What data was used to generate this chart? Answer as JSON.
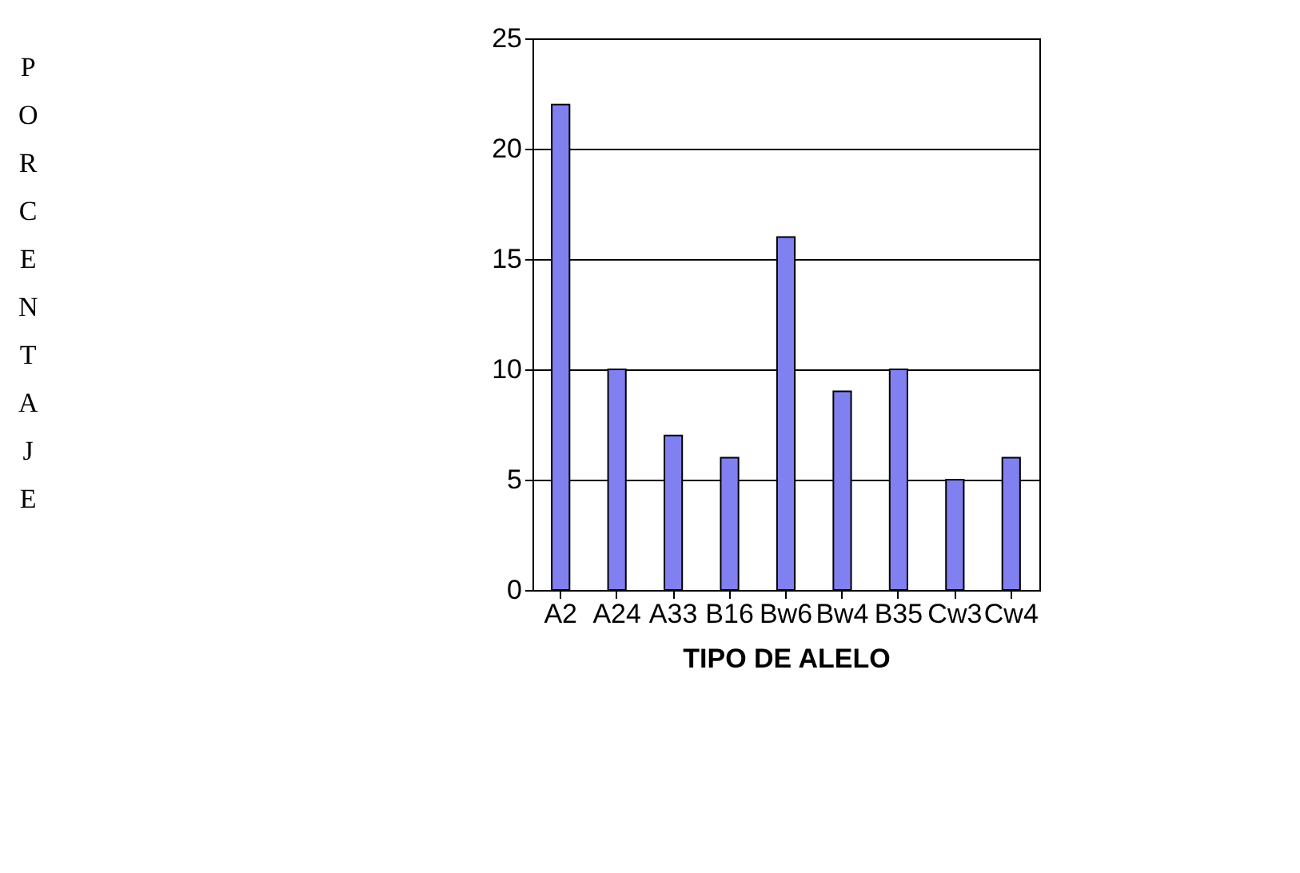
{
  "chart_data": {
    "type": "bar",
    "xlabel": "TIPO DE ALELO",
    "ylabel": "PORCENTAJE",
    "categories": [
      "A2",
      "A24",
      "A33",
      "B16",
      "Bw6",
      "Bw4",
      "B35",
      "Cw3",
      "Cw4"
    ],
    "values": [
      22,
      10,
      7,
      6,
      16,
      9,
      10,
      5,
      6
    ],
    "color": "#8080f0",
    "ylim": [
      0,
      25
    ],
    "yticks": [
      0,
      5,
      10,
      15,
      20,
      25
    ],
    "grid": "y"
  }
}
